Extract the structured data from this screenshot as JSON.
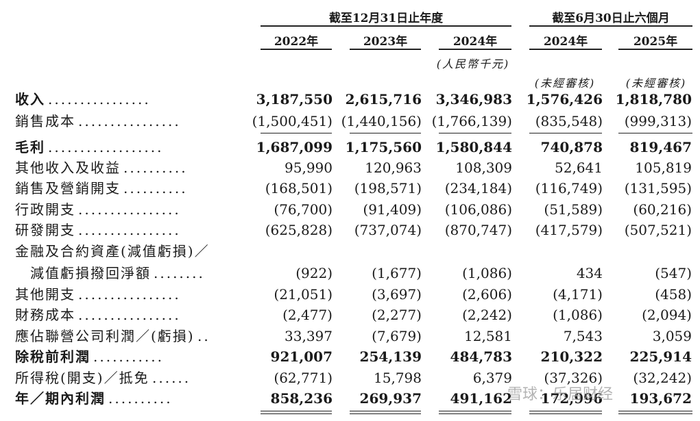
{
  "header": {
    "group_annual": "截至12月31日止年度",
    "group_interim": "截至6月30日止六個月",
    "years": [
      "2022年",
      "2023年",
      "2024年",
      "2024年",
      "2025年"
    ],
    "currency_unit": "(人民幣千元)",
    "unaudited_1": "(未經審核)",
    "unaudited_2": "(未經審核)"
  },
  "rows": [
    {
      "label": "收入",
      "dots": "................",
      "bold": true,
      "values": [
        "3,187,550",
        "2,615,716",
        "3,346,983",
        "1,576,426",
        "1,818,780"
      ]
    },
    {
      "label": "銷售成本",
      "dots": "................",
      "bold": false,
      "values": [
        "(1,500,451)",
        "(1,440,156)",
        "(1,766,139)",
        "(835,548)",
        "(999,313)"
      ]
    },
    {
      "label": "毛利",
      "dots": "..................",
      "bold": true,
      "values": [
        "1,687,099",
        "1,175,560",
        "1,580,844",
        "740,878",
        "819,467"
      ]
    },
    {
      "label": "其他收入及收益",
      "dots": "..........",
      "bold": false,
      "values": [
        "95,990",
        "120,963",
        "108,309",
        "52,641",
        "105,819"
      ]
    },
    {
      "label": "銷售及營銷開支",
      "dots": "..........",
      "bold": false,
      "values": [
        "(168,501)",
        "(198,571)",
        "(234,184)",
        "(116,749)",
        "(131,595)"
      ]
    },
    {
      "label": "行政開支",
      "dots": "................",
      "bold": false,
      "values": [
        "(76,700)",
        "(91,409)",
        "(106,086)",
        "(51,589)",
        "(60,216)"
      ]
    },
    {
      "label": "研發開支",
      "dots": "................",
      "bold": false,
      "values": [
        "(625,828)",
        "(737,074)",
        "(870,747)",
        "(417,579)",
        "(507,521)"
      ]
    },
    {
      "label": "金融及合約資產(減值虧損)／",
      "dots": "",
      "bold": false,
      "values": [
        "",
        "",
        "",
        "",
        ""
      ]
    },
    {
      "label": "　減值虧損撥回淨額",
      "dots": "........",
      "bold": false,
      "values": [
        "(922)",
        "(1,677)",
        "(1,086)",
        "434",
        "(547)"
      ]
    },
    {
      "label": "其他開支",
      "dots": "................",
      "bold": false,
      "values": [
        "(21,051)",
        "(3,697)",
        "(2,606)",
        "(4,171)",
        "(458)"
      ]
    },
    {
      "label": "財務成本",
      "dots": "................",
      "bold": false,
      "values": [
        "(2,477)",
        "(2,277)",
        "(2,242)",
        "(1,086)",
        "(2,094)"
      ]
    },
    {
      "label": "應佔聯營公司利潤／(虧損)",
      "dots": "..",
      "bold": false,
      "values": [
        "33,397",
        "(7,679)",
        "12,581",
        "7,543",
        "3,059"
      ]
    },
    {
      "label": "除稅前利潤",
      "dots": "...........",
      "bold": true,
      "values": [
        "921,007",
        "254,139",
        "484,783",
        "210,322",
        "225,914"
      ]
    },
    {
      "label": "所得稅(開支)／抵免",
      "dots": "......",
      "bold": false,
      "values": [
        "(62,771)",
        "15,798",
        "6,379",
        "(37,326)",
        "(32,242)"
      ]
    },
    {
      "label": "年／期內利潤",
      "dots": "..........",
      "bold": true,
      "values": [
        "858,236",
        "269,937",
        "491,162",
        "172,996",
        "193,672"
      ]
    }
  ],
  "watermark": "雪球：乐居财经"
}
